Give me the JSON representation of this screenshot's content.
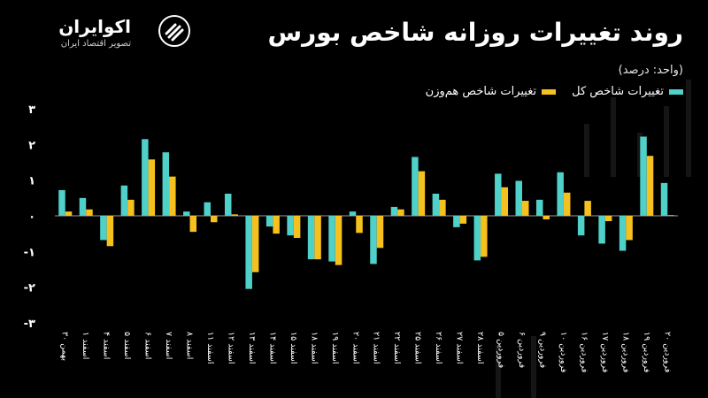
{
  "brand": {
    "name": "اکوایران",
    "tagline": "تصویر اقتصاد ایران"
  },
  "title": "روند تغییرات روزانه شاخص بورس",
  "unit_label": "(واحد: درصد)",
  "colors": {
    "total": "#4fd0c8",
    "equal": "#f6c11f",
    "background": "#000000"
  },
  "chart_data": {
    "type": "bar",
    "ylim": [
      -3,
      3
    ],
    "y_ticks": [
      "۳",
      "۲",
      "۱",
      "۰",
      "-۱",
      "-۲",
      "-۳"
    ],
    "categories": [
      "۳۰ بهمن",
      "۱ اسفند",
      "۴ اسفند",
      "۵ اسفند",
      "۶ اسفند",
      "۷ اسفند",
      "۸ اسفند",
      "۱۱ اسفند",
      "۱۲ اسفند",
      "۱۳ اسفند",
      "۱۴ اسفند",
      "۱۵ اسفند",
      "۱۸ اسفند",
      "۱۹ اسفند",
      "۲۰ اسفند",
      "۲۱ اسفند",
      "۲۲ اسفند",
      "۲۵ اسفند",
      "۲۶ اسفند",
      "۲۷ اسفند",
      "۲۸ اسفند",
      "۵ فروردین",
      "۶ فروردین",
      "۹ فروردین",
      "۱۰ فروردین",
      "۱۶ فروردین",
      "۱۷ فروردین",
      "۱۸ فروردین",
      "۱۹ فروردین",
      "۲۰ فروردین"
    ],
    "series": [
      {
        "name": "تغییرات شاخص کل",
        "color": "#4fd0c8",
        "values": [
          0.72,
          0.5,
          -0.68,
          0.85,
          2.15,
          1.78,
          0.12,
          0.38,
          0.62,
          -2.05,
          -0.3,
          -0.55,
          -1.22,
          -1.28,
          0.12,
          -1.35,
          0.25,
          1.65,
          0.62,
          -0.32,
          -1.25,
          1.18,
          0.98,
          0.45,
          1.22,
          -0.55,
          -0.78,
          -0.98,
          2.22,
          0.92
        ]
      },
      {
        "name": "تغییرات شاخص هم‌وزن",
        "color": "#f6c11f",
        "values": [
          0.12,
          0.18,
          -0.85,
          0.45,
          1.58,
          1.1,
          -0.45,
          -0.18,
          0.04,
          -1.58,
          -0.5,
          -0.62,
          -1.22,
          -1.38,
          -0.48,
          -0.9,
          0.18,
          1.25,
          0.45,
          -0.22,
          -1.15,
          0.8,
          0.42,
          -0.1,
          0.65,
          0.42,
          -0.15,
          -0.68,
          1.68,
          0.02
        ]
      }
    ],
    "grid": false,
    "legend_position": "top-right"
  }
}
